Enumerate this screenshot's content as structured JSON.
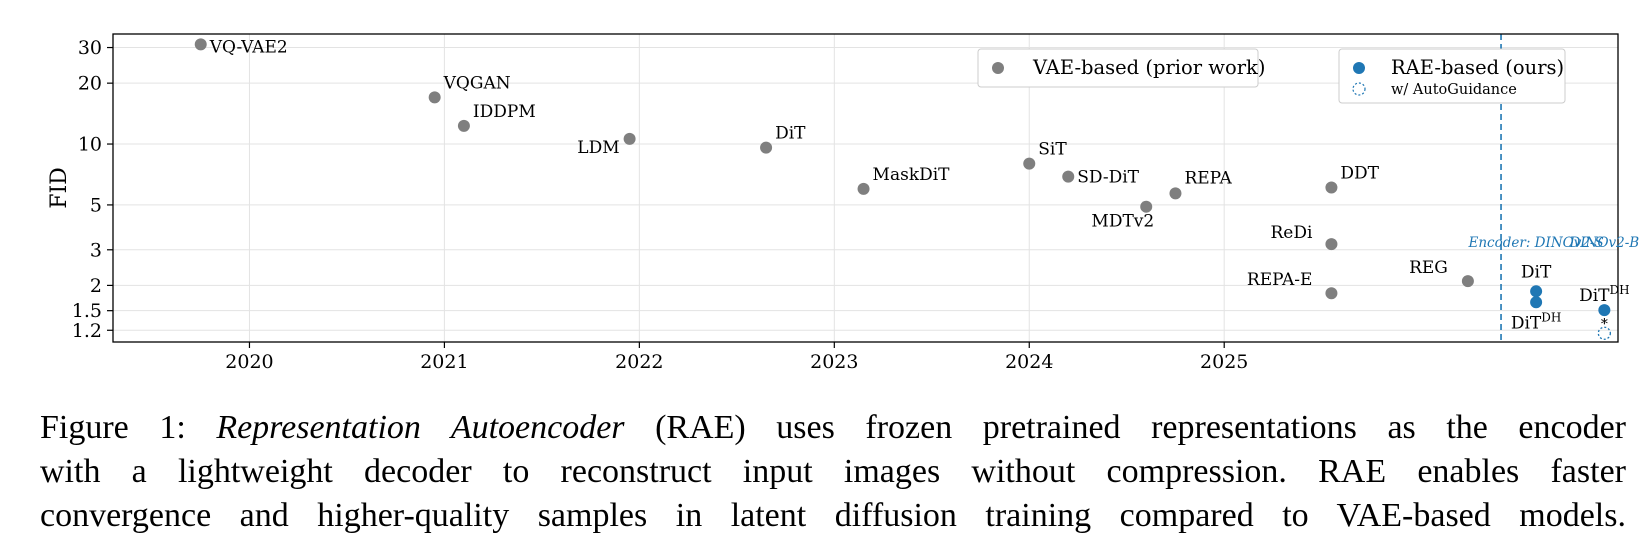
{
  "chart_data": {
    "type": "scatter",
    "ylabel": "FID",
    "y_scale": "log",
    "ylim": [
      1.05,
      35
    ],
    "y_ticks": [
      {
        "value": 1.2,
        "label": "1.2"
      },
      {
        "value": 1.5,
        "label": "1.5"
      },
      {
        "value": 2,
        "label": "2"
      },
      {
        "value": 3,
        "label": "3"
      },
      {
        "value": 5,
        "label": "5"
      },
      {
        "value": 10,
        "label": "10"
      },
      {
        "value": 20,
        "label": "20"
      },
      {
        "value": 30,
        "label": "30"
      }
    ],
    "xlim": [
      2019.3,
      2027.02
    ],
    "x_ticks": [
      {
        "value": 2020,
        "label": "2020"
      },
      {
        "value": 2021,
        "label": "2021"
      },
      {
        "value": 2022,
        "label": "2022"
      },
      {
        "value": 2023,
        "label": "2023"
      },
      {
        "value": 2024,
        "label": "2024"
      },
      {
        "value": 2025,
        "label": "2025"
      }
    ],
    "grid": true,
    "divider_x": 2026.42,
    "colors": {
      "vae": "#7f7f7f",
      "rae": "#1f77b4",
      "grid": "#e3e3e3",
      "axis": "#000000"
    },
    "series": [
      {
        "name": "VAE-based (prior work)",
        "points": [
          {
            "x": 2019.75,
            "y": 31.1,
            "label": "VQ-VAE2",
            "anchor": "start"
          },
          {
            "x": 2020.95,
            "y": 17.0,
            "label": "VQGAN",
            "anchor": "start"
          },
          {
            "x": 2021.1,
            "y": 12.3,
            "label": "IDDPM",
            "anchor": "start"
          },
          {
            "x": 2021.95,
            "y": 10.6,
            "label": "LDM",
            "anchor": "end"
          },
          {
            "x": 2022.65,
            "y": 9.6,
            "label": "DiT",
            "anchor": "start"
          },
          {
            "x": 2023.15,
            "y": 6.0,
            "label": "MaskDiT",
            "anchor": "start"
          },
          {
            "x": 2024.0,
            "y": 8.0,
            "label": "SiT",
            "anchor": "start"
          },
          {
            "x": 2024.2,
            "y": 6.9,
            "label": "SD-DiT",
            "anchor": "start"
          },
          {
            "x": 2024.6,
            "y": 4.9,
            "label": "MDTv2",
            "anchor": "end"
          },
          {
            "x": 2024.75,
            "y": 5.7,
            "label": "REPA",
            "anchor": "start"
          },
          {
            "x": 2025.55,
            "y": 6.1,
            "label": "DDT",
            "anchor": "start"
          },
          {
            "x": 2025.55,
            "y": 3.2,
            "label": "ReDi",
            "anchor": "end"
          },
          {
            "x": 2025.55,
            "y": 1.83,
            "label": "REPA-E",
            "anchor": "end"
          },
          {
            "x": 2026.25,
            "y": 2.1,
            "label": "REG",
            "anchor": "end"
          }
        ]
      },
      {
        "name": "RAE-based (ours)",
        "points": [
          {
            "x": 2026.6,
            "y": 1.87,
            "label": "DiT",
            "group": "Encoder: DINOv2-S"
          },
          {
            "x": 2026.6,
            "y": 1.65,
            "label": "DiT",
            "superscript": "DH",
            "group": "Encoder: DINOv2-S"
          },
          {
            "x": 2026.95,
            "y": 1.51,
            "label": "DiT",
            "superscript": "DH",
            "group": "DINOv2-B"
          }
        ]
      },
      {
        "name": "w/ AutoGuidance",
        "points": [
          {
            "x": 2026.95,
            "y": 1.16,
            "label": ""
          }
        ]
      }
    ],
    "group_labels": [
      {
        "text": "Encoder: DINOv2-S"
      },
      {
        "text": "DINOv2-B"
      }
    ],
    "legends": [
      {
        "entries": [
          {
            "label": "VAE-based (prior work)",
            "marker": "filled-gray"
          }
        ]
      },
      {
        "entries": [
          {
            "label": "RAE-based (ours)",
            "marker": "filled-blue"
          },
          {
            "label": "w/ AutoGuidance",
            "marker": "dotted-blue"
          }
        ]
      }
    ],
    "annotations": [
      {
        "text": "*",
        "note": "arrow from DiT-DH to AutoGuidance point"
      }
    ]
  },
  "caption": {
    "line1_prefix": "Figure 1: ",
    "line1_italic": "Representation Autoencoder",
    "line1_rest": " (RAE) uses frozen pretrained representations as the encoder",
    "line2": "with a lightweight decoder to reconstruct input images without compression.  RAE enables faster",
    "line3": "convergence and higher-quality samples in latent diffusion training compared to VAE-based models."
  }
}
